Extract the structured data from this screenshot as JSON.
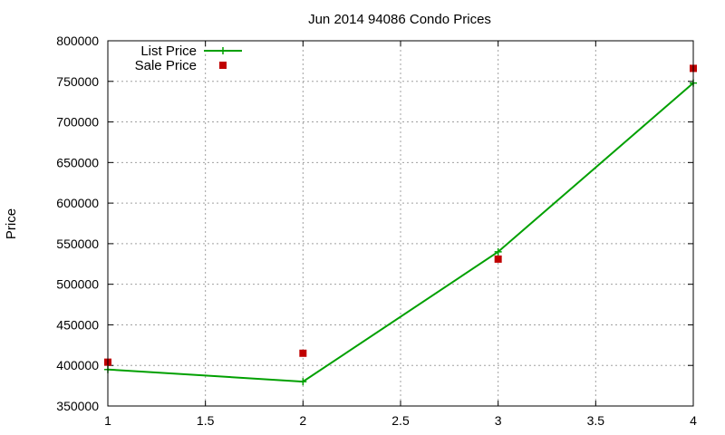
{
  "chart_data": {
    "type": "line",
    "title": "Jun 2014 94086 Condo Prices",
    "xlabel": "",
    "ylabel": "Price",
    "xlim": [
      1,
      4
    ],
    "ylim": [
      350000,
      800000
    ],
    "x_ticks": [
      "1",
      "1.5",
      "2",
      "2.5",
      "3",
      "3.5",
      "4"
    ],
    "y_ticks": [
      "350000",
      "400000",
      "450000",
      "500000",
      "550000",
      "600000",
      "650000",
      "700000",
      "750000",
      "800000"
    ],
    "grid": true,
    "legend_position": "top-left",
    "series": [
      {
        "name": "List Price",
        "style": "linespoints",
        "marker": "plus",
        "color": "#00a000",
        "x": [
          1,
          2,
          3,
          4
        ],
        "y": [
          395000,
          380000,
          540000,
          748000
        ]
      },
      {
        "name": "Sale Price",
        "style": "points",
        "marker": "square",
        "color": "#c00000",
        "x": [
          1,
          2,
          3,
          4
        ],
        "y": [
          404000,
          415000,
          531000,
          766000
        ]
      }
    ]
  }
}
